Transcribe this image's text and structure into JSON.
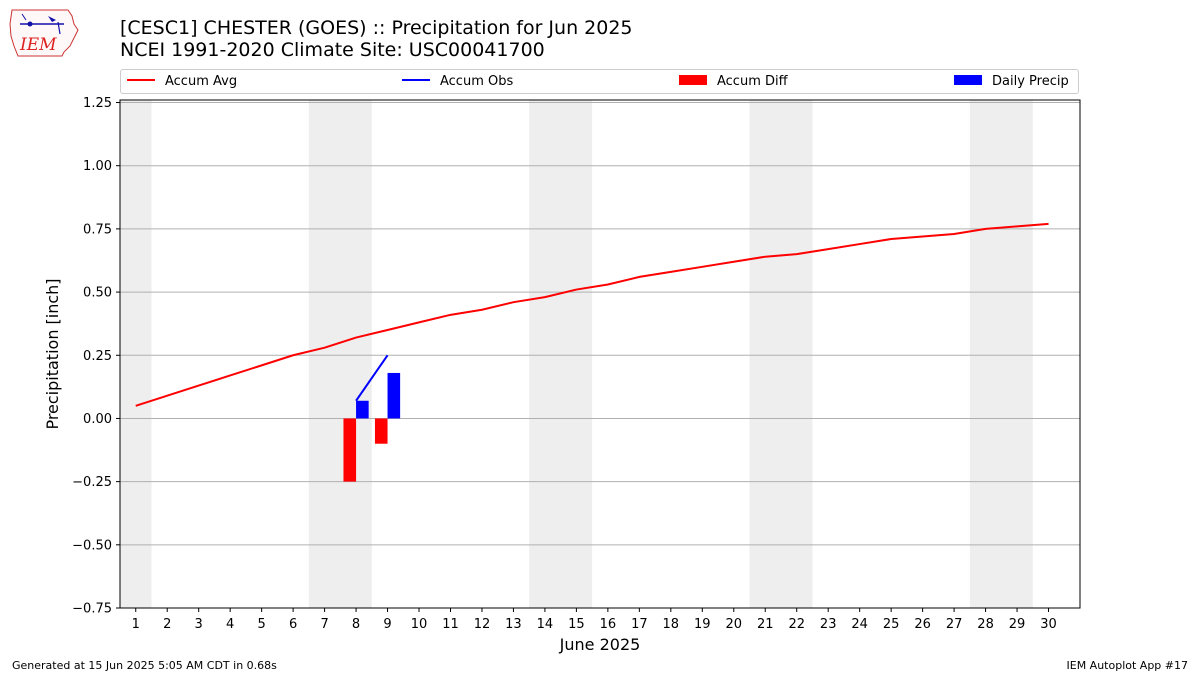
{
  "header": {
    "title_line1": "[CESC1] CHESTER (GOES) :: Precipitation for Jun 2025",
    "title_line2": "NCEI 1991-2020 Climate Site: USC00041700"
  },
  "logo": {
    "text": "IEM"
  },
  "legend": {
    "position": "top",
    "items": [
      {
        "label": "Accum Avg",
        "kind": "line",
        "color": "#ff0000"
      },
      {
        "label": "Accum Obs",
        "kind": "line",
        "color": "#0000ff"
      },
      {
        "label": "Accum Diff",
        "kind": "bar",
        "color": "#ff0000"
      },
      {
        "label": "Daily Precip",
        "kind": "bar",
        "color": "#0000ff"
      }
    ]
  },
  "footer": {
    "left": "Generated at 15 Jun 2025 5:05 AM CDT in 0.68s",
    "right": "IEM Autoplot App #17"
  },
  "colors": {
    "avg": "#ff0000",
    "obs": "#0000ff",
    "weekend_shade": "#eeeeee",
    "grid": "#b0b0b0"
  },
  "chart_data": {
    "type": "line",
    "title": "[CESC1] CHESTER (GOES) :: Precipitation for Jun 2025",
    "subtitle": "NCEI 1991-2020 Climate Site: USC00041700",
    "xlabel": "June 2025",
    "ylabel": "Precipitation [inch]",
    "xlim": [
      0.5,
      31
    ],
    "ylim": [
      -0.75,
      1.26
    ],
    "x_ticks": [
      1,
      2,
      3,
      4,
      5,
      6,
      7,
      8,
      9,
      10,
      11,
      12,
      13,
      14,
      15,
      16,
      17,
      18,
      19,
      20,
      21,
      22,
      23,
      24,
      25,
      26,
      27,
      28,
      29,
      30
    ],
    "y_ticks": [
      -0.75,
      -0.5,
      -0.25,
      0.0,
      0.25,
      0.5,
      0.75,
      1.0,
      1.25
    ],
    "y_tick_labels": [
      "−0.75",
      "−0.50",
      "−0.25",
      "0.00",
      "0.25",
      "0.50",
      "0.75",
      "1.00",
      "1.25"
    ],
    "grid": "horizontal",
    "shaded_day_ranges": [
      [
        0.5,
        1.5
      ],
      [
        6.5,
        8.5
      ],
      [
        13.5,
        15.5
      ],
      [
        20.5,
        22.5
      ],
      [
        27.5,
        29.5
      ]
    ],
    "series": [
      {
        "name": "Accum Avg",
        "type": "line",
        "color": "#ff0000",
        "x": [
          1,
          2,
          3,
          4,
          5,
          6,
          7,
          8,
          9,
          10,
          11,
          12,
          13,
          14,
          15,
          16,
          17,
          18,
          19,
          20,
          21,
          22,
          23,
          24,
          25,
          26,
          27,
          28,
          29,
          30
        ],
        "values": [
          0.05,
          0.09,
          0.13,
          0.17,
          0.21,
          0.25,
          0.28,
          0.32,
          0.35,
          0.38,
          0.41,
          0.43,
          0.46,
          0.48,
          0.51,
          0.53,
          0.56,
          0.58,
          0.6,
          0.62,
          0.64,
          0.65,
          0.67,
          0.69,
          0.71,
          0.72,
          0.73,
          0.75,
          0.76,
          0.77
        ]
      },
      {
        "name": "Accum Obs",
        "type": "line",
        "color": "#0000ff",
        "x": [
          8,
          9
        ],
        "values": [
          0.07,
          0.25
        ]
      },
      {
        "name": "Accum Diff",
        "type": "bar",
        "color": "#ff0000",
        "offset": -0.2,
        "x": [
          8,
          9
        ],
        "values": [
          -0.25,
          -0.1
        ]
      },
      {
        "name": "Daily Precip",
        "type": "bar",
        "color": "#0000ff",
        "offset": 0.2,
        "x": [
          8,
          9
        ],
        "values": [
          0.07,
          0.18
        ]
      }
    ]
  }
}
